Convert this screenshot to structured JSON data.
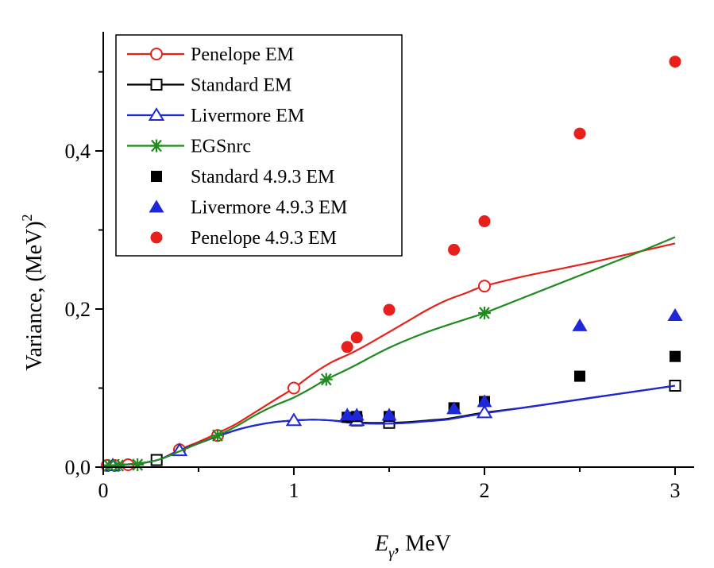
{
  "chart_data": {
    "type": "scatter",
    "title": "",
    "xlabel": {
      "symbol": "E",
      "subscript": "γ",
      "unit": ", MeV"
    },
    "ylabel": {
      "text": "Variance, (MeV)",
      "superscript": "2"
    },
    "xlim": [
      0,
      3.1
    ],
    "ylim": [
      0,
      0.56
    ],
    "xticks": [
      0,
      1,
      2,
      3
    ],
    "xtick_labels": [
      "0",
      "1",
      "2",
      "3"
    ],
    "yticks": [
      0,
      0.2,
      0.4
    ],
    "ytick_labels": [
      "0,0",
      "0,2",
      "0,4"
    ],
    "minor_xticks": [
      0.5,
      1.5,
      2.5
    ],
    "minor_yticks": [
      0.1,
      0.3,
      0.5
    ],
    "legend_position": "top-left",
    "grid": false,
    "series": [
      {
        "name": "Penelope EM",
        "color": "#e8201c",
        "marker": "circle-open",
        "line": true,
        "curve": [
          [
            0,
            0.002
          ],
          [
            0.1,
            0.003
          ],
          [
            0.2,
            0.005
          ],
          [
            0.3,
            0.01
          ],
          [
            0.4,
            0.022
          ],
          [
            0.5,
            0.032
          ],
          [
            0.6,
            0.043
          ],
          [
            0.7,
            0.055
          ],
          [
            0.8,
            0.07
          ],
          [
            0.9,
            0.085
          ],
          [
            1.0,
            0.1
          ],
          [
            1.1,
            0.118
          ],
          [
            1.2,
            0.133
          ],
          [
            1.3,
            0.144
          ],
          [
            1.4,
            0.157
          ],
          [
            1.5,
            0.171
          ],
          [
            1.6,
            0.185
          ],
          [
            1.7,
            0.199
          ],
          [
            1.8,
            0.211
          ],
          [
            1.9,
            0.22
          ],
          [
            2.0,
            0.229
          ],
          [
            2.2,
            0.241
          ],
          [
            2.4,
            0.251
          ],
          [
            2.6,
            0.261
          ],
          [
            2.8,
            0.272
          ],
          [
            3.0,
            0.283
          ]
        ],
        "points": [
          [
            0.02,
            0.002
          ],
          [
            0.06,
            0.002
          ],
          [
            0.13,
            0.003
          ],
          [
            0.4,
            0.022
          ],
          [
            0.6,
            0.04
          ],
          [
            1.0,
            0.1
          ],
          [
            2.0,
            0.229
          ]
        ]
      },
      {
        "name": "Standard EM",
        "color": "#000000",
        "marker": "square-open",
        "line": true,
        "curve": [
          [
            0,
            0.002
          ],
          [
            0.1,
            0.003
          ],
          [
            0.2,
            0.005
          ],
          [
            0.3,
            0.01
          ],
          [
            0.4,
            0.021
          ],
          [
            0.5,
            0.03
          ],
          [
            0.6,
            0.039
          ],
          [
            0.7,
            0.047
          ],
          [
            0.8,
            0.053
          ],
          [
            0.9,
            0.057
          ],
          [
            1.0,
            0.059
          ],
          [
            1.1,
            0.06
          ],
          [
            1.2,
            0.059
          ],
          [
            1.3,
            0.057
          ],
          [
            1.4,
            0.056
          ],
          [
            1.5,
            0.056
          ],
          [
            1.6,
            0.057
          ],
          [
            1.7,
            0.059
          ],
          [
            1.8,
            0.061
          ],
          [
            1.9,
            0.065
          ],
          [
            2.0,
            0.069
          ],
          [
            2.2,
            0.075
          ],
          [
            2.4,
            0.082
          ],
          [
            2.6,
            0.089
          ],
          [
            2.8,
            0.096
          ],
          [
            3.0,
            0.103
          ]
        ],
        "points": [
          [
            0.28,
            0.009
          ],
          [
            1.33,
            0.059
          ],
          [
            1.5,
            0.056
          ],
          [
            3.0,
            0.103
          ]
        ]
      },
      {
        "name": "Livermore EM",
        "color": "#1f28d8",
        "marker": "triangle-open",
        "line": true,
        "curve": [
          [
            0,
            0.002
          ],
          [
            0.1,
            0.003
          ],
          [
            0.2,
            0.005
          ],
          [
            0.3,
            0.01
          ],
          [
            0.4,
            0.021
          ],
          [
            0.5,
            0.03
          ],
          [
            0.6,
            0.039
          ],
          [
            0.7,
            0.047
          ],
          [
            0.8,
            0.053
          ],
          [
            0.9,
            0.057
          ],
          [
            1.0,
            0.059
          ],
          [
            1.1,
            0.06
          ],
          [
            1.2,
            0.059
          ],
          [
            1.3,
            0.056
          ],
          [
            1.4,
            0.055
          ],
          [
            1.5,
            0.055
          ],
          [
            1.6,
            0.056
          ],
          [
            1.7,
            0.058
          ],
          [
            1.8,
            0.06
          ],
          [
            1.9,
            0.064
          ],
          [
            2.0,
            0.068
          ],
          [
            2.2,
            0.075
          ],
          [
            2.4,
            0.082
          ],
          [
            2.6,
            0.089
          ],
          [
            2.8,
            0.096
          ],
          [
            3.0,
            0.103
          ]
        ],
        "points": [
          [
            0.05,
            0.002
          ],
          [
            0.4,
            0.021
          ],
          [
            1.0,
            0.059
          ],
          [
            1.33,
            0.059
          ],
          [
            2.0,
            0.069
          ]
        ]
      },
      {
        "name": "EGSnrc",
        "color": "#1f8a1f",
        "marker": "asterisk",
        "line": true,
        "curve": [
          [
            0,
            0.002
          ],
          [
            0.1,
            0.003
          ],
          [
            0.2,
            0.005
          ],
          [
            0.3,
            0.01
          ],
          [
            0.4,
            0.02
          ],
          [
            0.5,
            0.03
          ],
          [
            0.6,
            0.04
          ],
          [
            0.7,
            0.052
          ],
          [
            0.8,
            0.066
          ],
          [
            0.9,
            0.078
          ],
          [
            1.0,
            0.088
          ],
          [
            1.1,
            0.101
          ],
          [
            1.17,
            0.111
          ],
          [
            1.3,
            0.126
          ],
          [
            1.5,
            0.151
          ],
          [
            1.7,
            0.171
          ],
          [
            1.9,
            0.187
          ],
          [
            2.0,
            0.195
          ],
          [
            2.2,
            0.214
          ],
          [
            2.4,
            0.233
          ],
          [
            2.6,
            0.252
          ],
          [
            2.8,
            0.271
          ],
          [
            3.0,
            0.291
          ]
        ],
        "points": [
          [
            0.03,
            0.002
          ],
          [
            0.08,
            0.002
          ],
          [
            0.18,
            0.003
          ],
          [
            0.6,
            0.04
          ],
          [
            1.17,
            0.111
          ],
          [
            2.0,
            0.195
          ]
        ]
      },
      {
        "name": "Standard 4.9.3 EM",
        "color": "#000000",
        "marker": "square-filled",
        "line": false,
        "points": [
          [
            1.28,
            0.063
          ],
          [
            1.33,
            0.064
          ],
          [
            1.5,
            0.064
          ],
          [
            1.84,
            0.075
          ],
          [
            2.0,
            0.083
          ],
          [
            2.5,
            0.115
          ],
          [
            3.0,
            0.14
          ]
        ]
      },
      {
        "name": "Livermore 4.9.3 EM",
        "color": "#1f28d8",
        "marker": "triangle-filled",
        "line": false,
        "points": [
          [
            1.28,
            0.066
          ],
          [
            1.33,
            0.066
          ],
          [
            1.5,
            0.066
          ],
          [
            1.84,
            0.074
          ],
          [
            2.0,
            0.083
          ],
          [
            2.5,
            0.179
          ],
          [
            3.0,
            0.192
          ]
        ]
      },
      {
        "name": "Penelope 4.9.3 EM",
        "color": "#e8201c",
        "marker": "circle-filled",
        "line": false,
        "points": [
          [
            1.28,
            0.152
          ],
          [
            1.33,
            0.164
          ],
          [
            1.5,
            0.199
          ],
          [
            1.84,
            0.275
          ],
          [
            2.0,
            0.311
          ],
          [
            2.5,
            0.422
          ],
          [
            3.0,
            0.513
          ]
        ]
      }
    ]
  }
}
